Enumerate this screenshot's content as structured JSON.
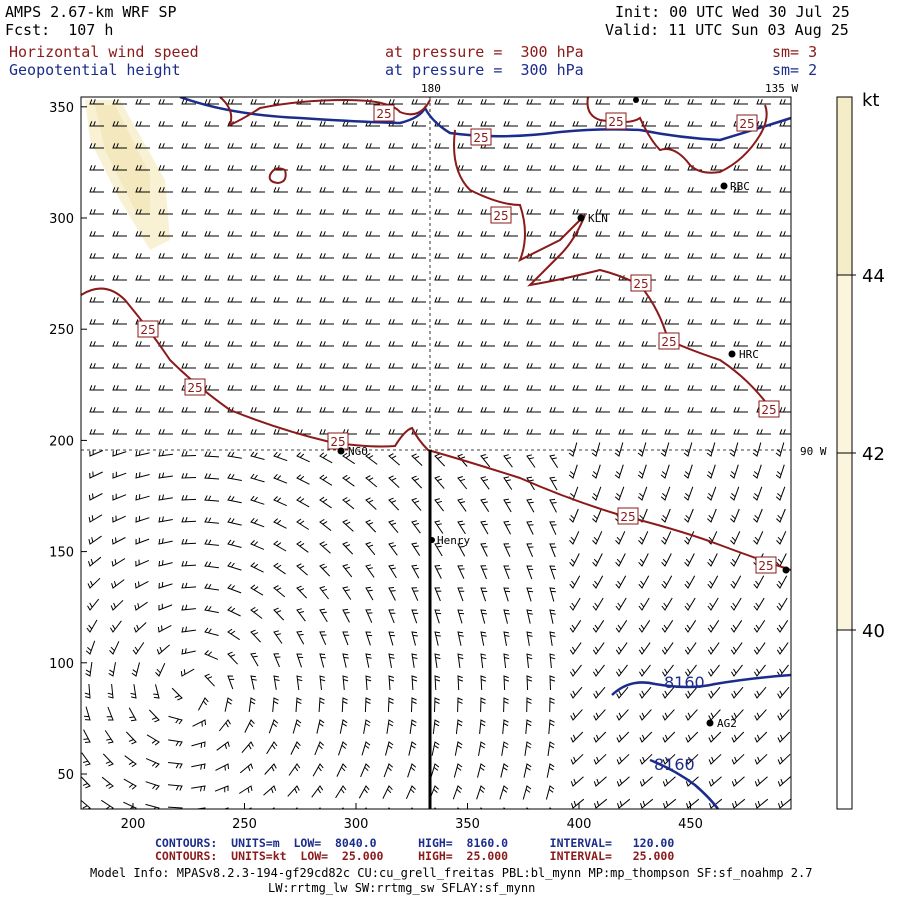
{
  "header": {
    "model": "AMPS 2.67-km WRF SP",
    "forecast": "Fcst:  107 h",
    "init": "Init: 00 UTC Wed 30 Jul 25",
    "valid": "Valid: 11 UTC Sun 03 Aug 25",
    "field1_name": "Horizontal wind speed",
    "field1_level": "at pressure =  300 hPa",
    "field1_sm": "sm= 3",
    "field2_name": "Geopotential height",
    "field2_level": "at pressure =  300 hPa",
    "field2_sm": "sm= 2"
  },
  "map": {
    "lon_labels": {
      "top_180": "180",
      "top_135w": "135 W",
      "right_90w": "90 W"
    },
    "x_ticks": [
      "200",
      "250",
      "300",
      "350",
      "400",
      "450"
    ],
    "y_ticks": [
      "50",
      "100",
      "150",
      "200",
      "250",
      "300",
      "350"
    ],
    "stations": [
      {
        "name": "RBC",
        "label": "RBC"
      },
      {
        "name": "KLN",
        "label": "KLN"
      },
      {
        "name": "HRC",
        "label": "HRC"
      },
      {
        "name": "NGO",
        "label": "NGO"
      },
      {
        "name": "Henry",
        "label": "Henry"
      },
      {
        "name": "AG2",
        "label": "AG2"
      }
    ],
    "height_contour_labels": [
      "8160",
      "8160"
    ],
    "speed_contour_label": "25"
  },
  "colorbar": {
    "unit": "kt",
    "labels": [
      "44",
      "42",
      "40"
    ],
    "colors": {
      "top": "#f5ecc8",
      "mid": "#faf5dc",
      "bottom": "#ffffff"
    }
  },
  "footer": {
    "contours_height": "CONTOURS:  UNITS=m  LOW=  8040.0      HIGH=  8160.0      INTERVAL=   120.00",
    "contours_speed": "CONTOURS:  UNITS=kt  LOW=  25.000     HIGH=  25.000      INTERVAL=   25.000",
    "model_info_1": "Model Info: MPASv8.2.3-194-gf29cd82c CU:cu_grell_freitas PBL:bl_mynn MP:mp_thompson SF:sf_noahmp 2.7",
    "model_info_2": "LW:rrtmg_lw SW:rrtmg_sw SFLAY:sf_mynn"
  },
  "colors": {
    "height_contour": "#1c2c8c",
    "speed_contour": "#8b1a1a",
    "barbs": "#000000"
  }
}
